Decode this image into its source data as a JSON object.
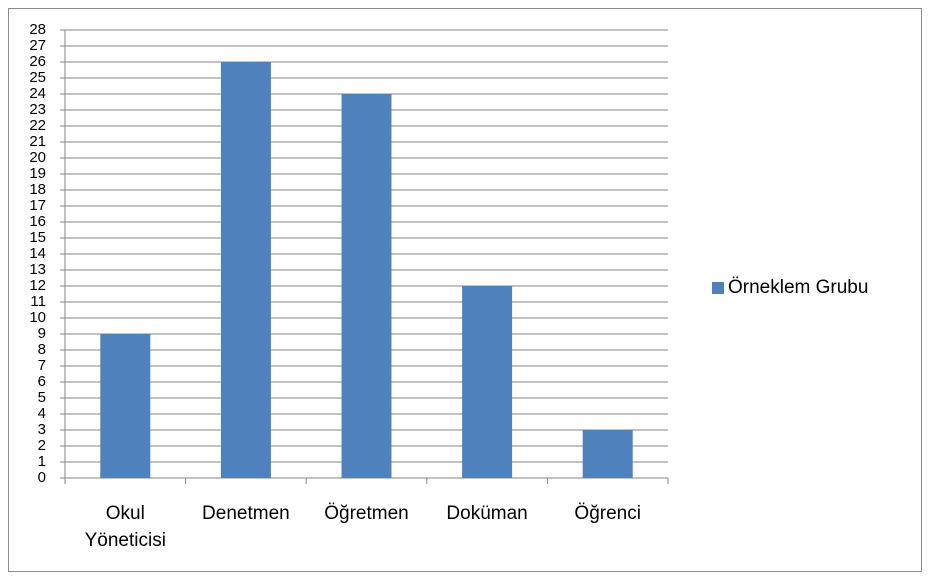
{
  "chart_data": {
    "type": "bar",
    "categories": [
      "Okul Yöneticisi",
      "Denetmen",
      "Öğretmen",
      "Doküman",
      "Öğrenci"
    ],
    "series": [
      {
        "name": "Örneklem Grubu",
        "color": "#4f81bd",
        "values": [
          9,
          26,
          24,
          12,
          3
        ]
      }
    ],
    "ylim": [
      0,
      28
    ],
    "yticks": [
      0,
      1,
      2,
      3,
      4,
      5,
      6,
      7,
      8,
      9,
      10,
      11,
      12,
      13,
      14,
      15,
      16,
      17,
      18,
      19,
      20,
      21,
      22,
      23,
      24,
      25,
      26,
      27,
      28
    ],
    "grid": true,
    "legend": "right"
  }
}
